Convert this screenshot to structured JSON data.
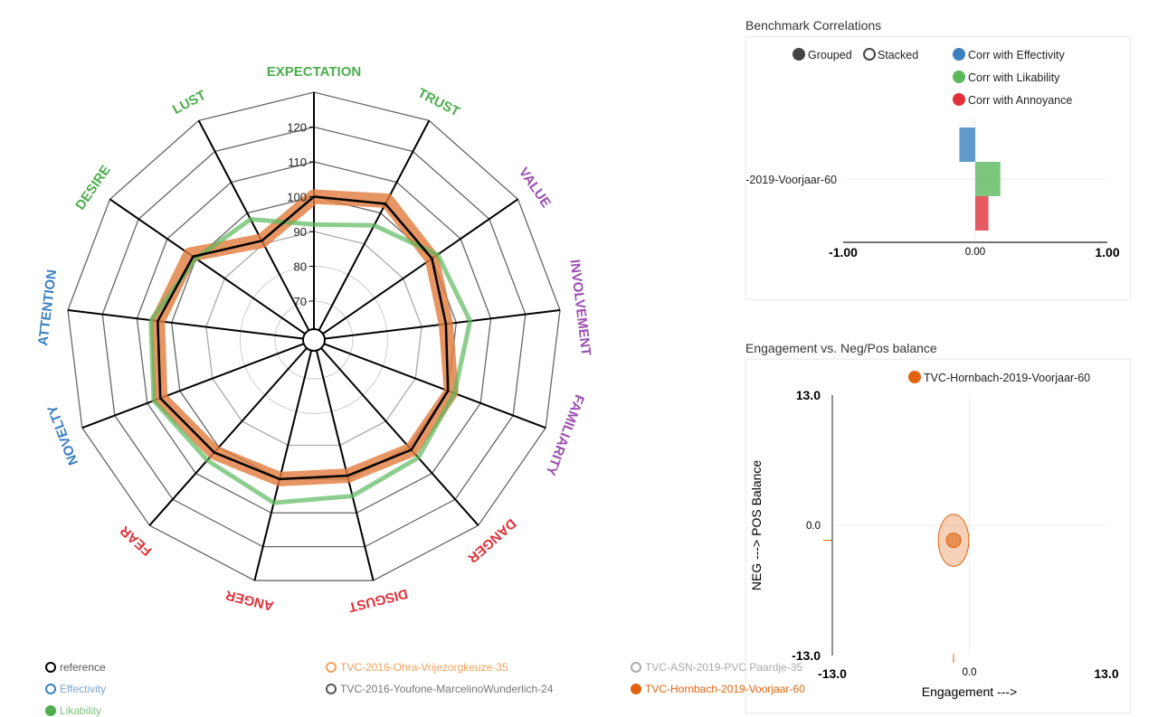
{
  "chart_data": [
    {
      "type": "radar",
      "scale": {
        "ticks": [
          70,
          80,
          90,
          100,
          110,
          120
        ],
        "max": 130
      },
      "axes": [
        {
          "label": "EXPECTATION",
          "color": "#4cae4c"
        },
        {
          "label": "TRUST",
          "color": "#4cae4c"
        },
        {
          "label": "VALUE",
          "color": "#9b4fb0"
        },
        {
          "label": "INVOLVEMENT",
          "color": "#9b4fb0"
        },
        {
          "label": "FAMILIARITY",
          "color": "#9b4fb0"
        },
        {
          "label": "DANGER",
          "color": "#e0313a"
        },
        {
          "label": "DISGUST",
          "color": "#e0313a"
        },
        {
          "label": "ANGER",
          "color": "#e0313a"
        },
        {
          "label": "FEAR",
          "color": "#e0313a"
        },
        {
          "label": "NOVELTY",
          "color": "#3b7fc0"
        },
        {
          "label": "ATTENTION",
          "color": "#3b7fc0"
        },
        {
          "label": "DESIRE",
          "color": "#4cae4c"
        },
        {
          "label": "LUST",
          "color": "#4cae4c"
        }
      ],
      "series": [
        {
          "name": "TVC-Hornbach-2019-Voorjaar-60",
          "color": "#e07b3c",
          "values": [
            100,
            104,
            100,
            97,
            101,
            101,
            99,
            100,
            102,
            106,
            104,
            102,
            91
          ]
        },
        {
          "name": "Likability",
          "color": "#5cb85c",
          "values": [
            92,
            96,
            102,
            104,
            102,
            104,
            105,
            107,
            105,
            108,
            106,
            100,
            98
          ]
        },
        {
          "name": "reference",
          "color": "#000000",
          "values": [
            100,
            103,
            100,
            97,
            100,
            101,
            99,
            100,
            102,
            106,
            104,
            101,
            91
          ]
        }
      ]
    },
    {
      "type": "bar",
      "title": "Benchmark Correlations",
      "orientation": "horizontal",
      "modes": [
        "Grouped",
        "Stacked"
      ],
      "selected_mode": "Grouped",
      "category": "-2019-Voorjaar-60",
      "xlim": [
        -1,
        1
      ],
      "ticks": [
        "-1.00",
        "0.00",
        "1.00"
      ],
      "series": [
        {
          "name": "Corr with Effectivity",
          "color": "#3b7fc0",
          "value": -0.12
        },
        {
          "name": "Corr with Likability",
          "color": "#5cb85c",
          "value": 0.19
        },
        {
          "name": "Corr with Annoyance",
          "color": "#e0313a",
          "value": 0.1
        }
      ]
    },
    {
      "type": "scatter",
      "title": "Engagement vs. Neg/Pos balance",
      "xlabel": "Engagement --->",
      "ylabel": "NEG ---> POS Balance",
      "xlim": [
        -13,
        13
      ],
      "ylim": [
        -13,
        13
      ],
      "xticks": [
        "-13.0",
        "0.0",
        "13.0"
      ],
      "yticks": [
        "13.0",
        "0.0",
        "-13.0"
      ],
      "points": [
        {
          "name": "TVC-Hornbach-2019-Voorjaar-60",
          "color": "#e0640f",
          "x": -1.5,
          "y": -1.5,
          "sd_x": 1.45,
          "sd_y": 2.6
        }
      ]
    }
  ],
  "legend": [
    {
      "label": "reference",
      "color": "#000000",
      "filled": false,
      "text_color": "#555"
    },
    {
      "label": "TVC-2016-Ohra-Vrijezorgkeuze-35",
      "color": "#f5a05a",
      "filled": false,
      "text_color": "#f5a05a"
    },
    {
      "label": "TVC-ASN-2019-PVC Paardje-35",
      "color": "#aaaaaa",
      "filled": false,
      "text_color": "#aaa"
    },
    {
      "label": "Effectivity",
      "color": "#3b7fc0",
      "filled": false,
      "text_color": "#7aa6d4"
    },
    {
      "label": "TVC-2016-Youfone-MarcelinoWunderlich-24",
      "color": "#555555",
      "filled": false,
      "text_color": "#777"
    },
    {
      "label": "TVC-Hornbach-2019-Voorjaar-60",
      "color": "#e0640f",
      "filled": true,
      "text_color": "#e0640f"
    },
    {
      "label": "Likability",
      "color": "#4cae4c",
      "filled": true,
      "text_color": "#7cc47c"
    }
  ]
}
